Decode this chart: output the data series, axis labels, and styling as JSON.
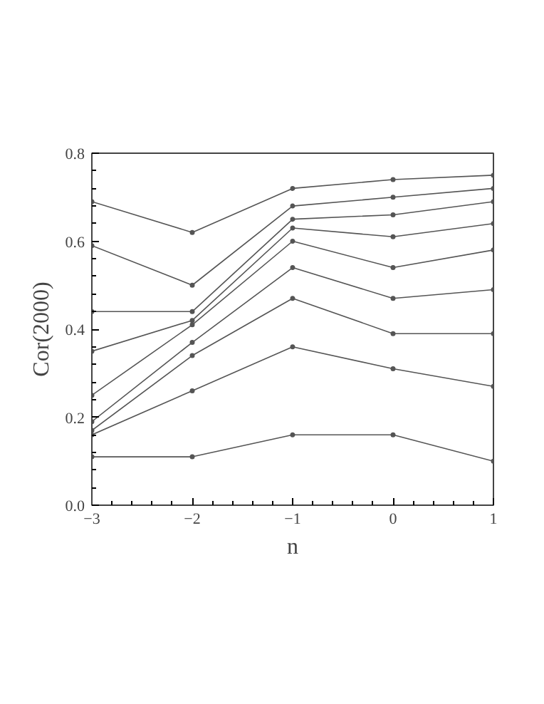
{
  "chart_data": {
    "type": "line",
    "xlabel": "n",
    "ylabel": "Cor(2000)",
    "x": [
      -3,
      -2,
      -1,
      0,
      1
    ],
    "series": [
      {
        "color": "#555555",
        "values": [
          0.69,
          0.62,
          0.72,
          0.74,
          0.75
        ]
      },
      {
        "color": "#555555",
        "values": [
          0.59,
          0.5,
          0.68,
          0.7,
          0.72
        ]
      },
      {
        "color": "#555555",
        "values": [
          0.44,
          0.44,
          0.65,
          0.66,
          0.69
        ]
      },
      {
        "color": "#555555",
        "values": [
          0.35,
          0.42,
          0.63,
          0.61,
          0.64
        ]
      },
      {
        "color": "#555555",
        "values": [
          0.25,
          0.41,
          0.6,
          0.54,
          0.58
        ]
      },
      {
        "color": "#555555",
        "values": [
          0.19,
          0.37,
          0.54,
          0.47,
          0.49
        ]
      },
      {
        "color": "#555555",
        "values": [
          0.17,
          0.34,
          0.47,
          0.39,
          0.39
        ]
      },
      {
        "color": "#555555",
        "values": [
          0.16,
          0.26,
          0.36,
          0.31,
          0.27
        ]
      },
      {
        "color": "#555555",
        "values": [
          0.11,
          0.11,
          0.16,
          0.16,
          0.1
        ]
      }
    ],
    "xlim": [
      -3,
      1
    ],
    "xticks": [
      -3,
      -2,
      -1,
      0,
      1
    ],
    "ylim": [
      0,
      0.8
    ],
    "yticks": [
      {
        "value": 0,
        "label": "0.0"
      },
      {
        "value": 0.2,
        "label": "0.2"
      },
      {
        "value": 0.4,
        "label": "0.4"
      },
      {
        "value": 0.6,
        "label": "0.6"
      },
      {
        "value": 0.8,
        "label": "0.8"
      }
    ],
    "grid": false,
    "marker": "circle",
    "line_style": "solid"
  }
}
